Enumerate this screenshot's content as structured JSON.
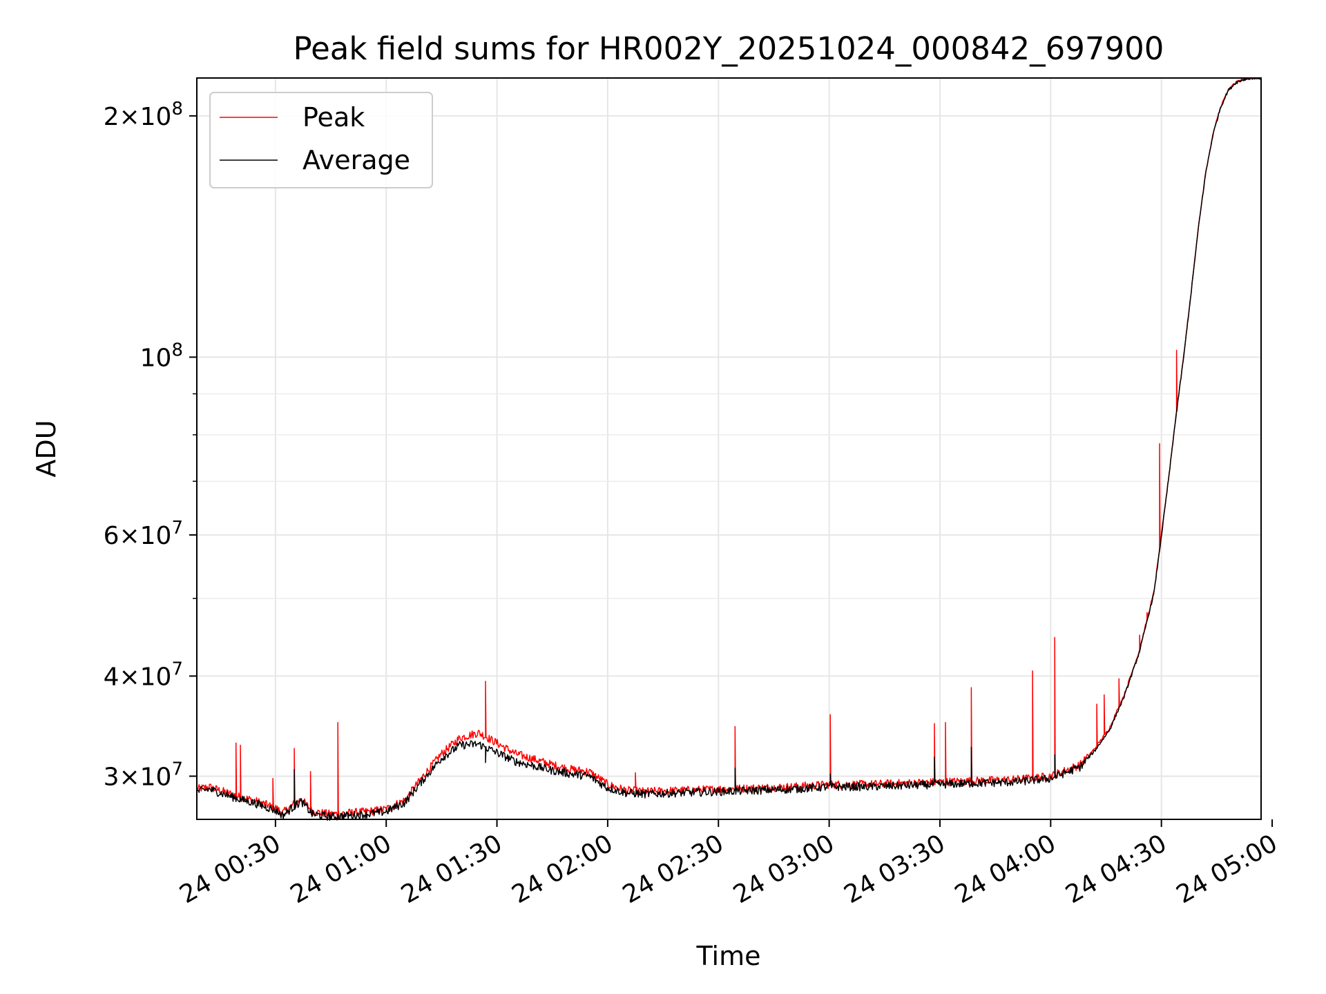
{
  "chart_data": {
    "type": "line",
    "title": "Peak field sums for HR002Y_20251024_000842_697900",
    "xlabel": "Time",
    "ylabel": "ADU",
    "yscale": "log",
    "grid": true,
    "legend_position": "top-left",
    "xlim_minutes": [
      8.7,
      297
    ],
    "ylim": [
      26500000,
      223000000
    ],
    "x_ticks": [
      {
        "minutes": 30,
        "label": "24 00:30"
      },
      {
        "minutes": 60,
        "label": "24 01:00"
      },
      {
        "minutes": 90,
        "label": "24 01:30"
      },
      {
        "minutes": 120,
        "label": "24 02:00"
      },
      {
        "minutes": 150,
        "label": "24 02:30"
      },
      {
        "minutes": 180,
        "label": "24 03:00"
      },
      {
        "minutes": 210,
        "label": "24 03:30"
      },
      {
        "minutes": 240,
        "label": "24 04:00"
      },
      {
        "minutes": 270,
        "label": "24 04:30"
      },
      {
        "minutes": 300,
        "label": "24 05:00"
      }
    ],
    "y_ticks": [
      {
        "value": 30000000,
        "mant": "3",
        "exp": "7"
      },
      {
        "value": 40000000,
        "mant": "4",
        "exp": "7"
      },
      {
        "value": 60000000,
        "mant": "6",
        "exp": "7"
      },
      {
        "value": 100000000,
        "mant": "",
        "exp": "8"
      },
      {
        "value": 200000000,
        "mant": "2",
        "exp": "8"
      }
    ],
    "y_minor_ticks": [
      50000000,
      70000000,
      80000000,
      90000000
    ],
    "series": [
      {
        "name": "Peak",
        "color": "#ff0000",
        "minutes": [
          8.7,
          12,
          16,
          20,
          24,
          27,
          30,
          32,
          35,
          37,
          40,
          45,
          50,
          55,
          60,
          65,
          70,
          75,
          80,
          85,
          90,
          95,
          100,
          105,
          110,
          115,
          120,
          125,
          130,
          140,
          150,
          160,
          170,
          180,
          190,
          200,
          210,
          220,
          230,
          240,
          244,
          248,
          252,
          256,
          260,
          264,
          268,
          270,
          272,
          274,
          276,
          278,
          280,
          282,
          284,
          286,
          288,
          290,
          292,
          294,
          297
        ],
        "values": [
          28900000,
          29100000,
          28700000,
          28300000,
          28000000,
          27700000,
          27400000,
          27000000,
          27700000,
          28100000,
          27100000,
          26900000,
          27000000,
          27100000,
          27300000,
          28000000,
          30000000,
          32000000,
          33500000,
          34000000,
          33000000,
          32000000,
          31500000,
          31000000,
          30600000,
          30400000,
          29300000,
          28800000,
          28700000,
          28800000,
          28900000,
          29000000,
          29100000,
          29300000,
          29300000,
          29400000,
          29500000,
          29600000,
          29700000,
          30000000,
          30500000,
          31000000,
          32500000,
          34500000,
          38000000,
          43000000,
          51000000,
          60000000,
          71000000,
          85000000,
          100000000,
          120000000,
          145000000,
          170000000,
          190000000,
          205000000,
          215000000,
          220000000,
          222000000,
          223000000,
          223000000
        ],
        "spikes": [
          {
            "minutes": 19.3,
            "value": 33000000
          },
          {
            "minutes": 20.5,
            "value": 32800000
          },
          {
            "minutes": 29.3,
            "value": 29800000
          },
          {
            "minutes": 35.0,
            "value": 32500000
          },
          {
            "minutes": 39.5,
            "value": 30400000
          },
          {
            "minutes": 47.0,
            "value": 35000000
          },
          {
            "minutes": 87.0,
            "value": 39400000
          },
          {
            "minutes": 127.5,
            "value": 30300000
          },
          {
            "minutes": 154.5,
            "value": 34600000
          },
          {
            "minutes": 180.3,
            "value": 35800000
          },
          {
            "minutes": 208.5,
            "value": 34900000
          },
          {
            "minutes": 211.5,
            "value": 35000000
          },
          {
            "minutes": 218.5,
            "value": 38700000
          },
          {
            "minutes": 235.0,
            "value": 40600000
          },
          {
            "minutes": 241.0,
            "value": 44700000
          },
          {
            "minutes": 252.5,
            "value": 36900000
          },
          {
            "minutes": 254.5,
            "value": 37900000
          },
          {
            "minutes": 258.5,
            "value": 39700000
          },
          {
            "minutes": 264.0,
            "value": 45000000
          },
          {
            "minutes": 266.0,
            "value": 48000000
          },
          {
            "minutes": 269.5,
            "value": 78000000
          },
          {
            "minutes": 274.0,
            "value": 102000000
          }
        ]
      },
      {
        "name": "Average",
        "color": "#000000",
        "minutes": [
          8.7,
          12,
          16,
          20,
          24,
          27,
          30,
          32,
          35,
          37,
          40,
          45,
          50,
          55,
          60,
          65,
          70,
          75,
          80,
          85,
          90,
          95,
          100,
          105,
          110,
          115,
          120,
          125,
          130,
          140,
          150,
          160,
          170,
          180,
          190,
          200,
          210,
          220,
          230,
          240,
          244,
          248,
          252,
          256,
          260,
          264,
          268,
          270,
          272,
          274,
          276,
          278,
          280,
          282,
          284,
          286,
          288,
          290,
          292,
          294,
          297
        ],
        "values": [
          28700000,
          28900000,
          28500000,
          28100000,
          27800000,
          27500000,
          27200000,
          26800000,
          27500000,
          27900000,
          26900000,
          26700000,
          26800000,
          26900000,
          27100000,
          27800000,
          29700000,
          31600000,
          32800000,
          32900000,
          32100000,
          31300000,
          30900000,
          30500000,
          30200000,
          30000000,
          29000000,
          28600000,
          28500000,
          28600000,
          28700000,
          28800000,
          28900000,
          29100000,
          29100000,
          29200000,
          29300000,
          29400000,
          29500000,
          29800000,
          30300000,
          30800000,
          32300000,
          34300000,
          37800000,
          42800000,
          50800000,
          59800000,
          70800000,
          84800000,
          99800000,
          119800000,
          144800000,
          169800000,
          189800000,
          204800000,
          214800000,
          219800000,
          221800000,
          223000000,
          223000000
        ],
        "spikes": [
          {
            "minutes": 35.0,
            "value": 30600000
          },
          {
            "minutes": 87.0,
            "value": 31200000
          },
          {
            "minutes": 154.5,
            "value": 30700000
          },
          {
            "minutes": 180.3,
            "value": 30200000
          },
          {
            "minutes": 208.5,
            "value": 31700000
          },
          {
            "minutes": 218.5,
            "value": 32600000
          },
          {
            "minutes": 241.0,
            "value": 31900000
          }
        ]
      }
    ]
  }
}
